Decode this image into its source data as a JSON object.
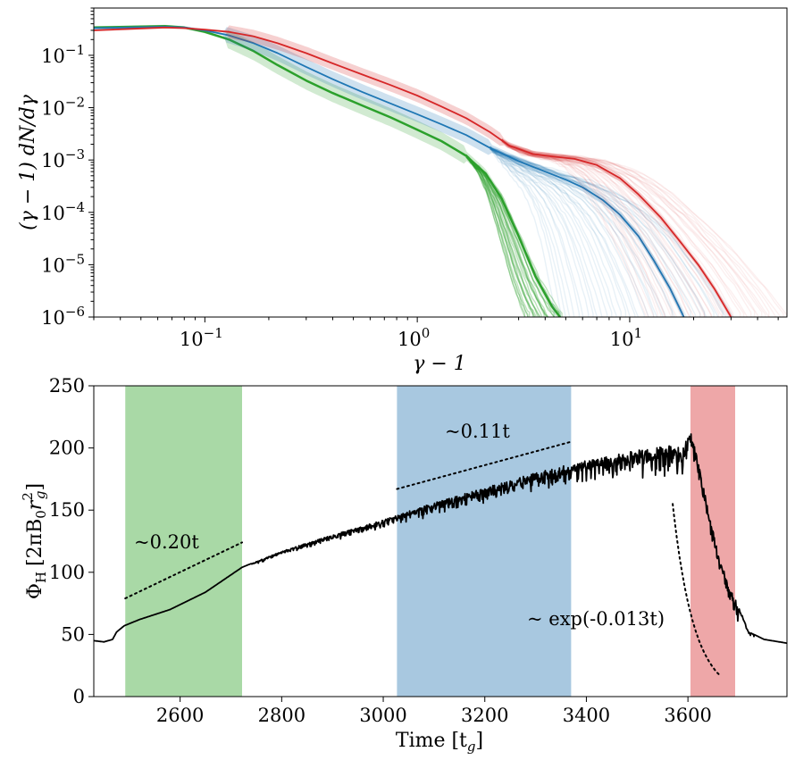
{
  "chart_data": [
    {
      "type": "line",
      "xscale": "log",
      "yscale": "log",
      "xlim": [
        0.03,
        55
      ],
      "ylim": [
        1e-06,
        0.8
      ],
      "xlabel": "γ − 1",
      "ylabel": "(γ − 1) dN/dγ",
      "xticks": [
        0.1,
        1,
        10
      ],
      "xtick_labels": [
        "10",
        "10",
        "10"
      ],
      "xtick_exps": [
        "−1",
        "0",
        "1"
      ],
      "yticks": [
        1e-06,
        1e-05,
        0.0001,
        0.001,
        0.01,
        0.1
      ],
      "ytick_labels": [
        "10",
        "10",
        "10",
        "10",
        "10",
        "10"
      ],
      "ytick_exps": [
        "−6",
        "−5",
        "−4",
        "−3",
        "−2",
        "−1"
      ],
      "series": [
        {
          "color": "#2ca02c",
          "x": [
            0.03,
            0.045,
            0.065,
            0.08,
            0.1,
            0.13,
            0.17,
            0.22,
            0.3,
            0.4,
            0.55,
            0.75,
            1.0,
            1.3,
            1.7,
            2.1,
            2.5,
            3.0,
            3.6,
            4.3,
            4.7
          ],
          "y": [
            0.34,
            0.35,
            0.36,
            0.34,
            0.28,
            0.2,
            0.12,
            0.065,
            0.033,
            0.019,
            0.011,
            0.0065,
            0.0038,
            0.0023,
            0.0012,
            0.00055,
            0.00018,
            3.5e-05,
            6e-06,
            1.6e-06,
            1e-06
          ],
          "band": 0.35,
          "fan": {
            "x_start": 1.7,
            "count": 24,
            "x_end_min": 3.2,
            "x_end_max": 4.8,
            "opacity": 0.3
          }
        },
        {
          "color": "#1f77b4",
          "x": [
            0.03,
            0.045,
            0.065,
            0.08,
            0.1,
            0.13,
            0.17,
            0.22,
            0.3,
            0.4,
            0.55,
            0.75,
            1.0,
            1.3,
            1.7,
            2.2,
            3.0,
            4.0,
            5.0,
            6.0,
            7.5,
            9.0,
            11.0,
            13.0,
            15.5,
            18.0
          ],
          "y": [
            0.33,
            0.34,
            0.35,
            0.34,
            0.3,
            0.24,
            0.17,
            0.11,
            0.06,
            0.035,
            0.02,
            0.012,
            0.0075,
            0.0048,
            0.003,
            0.0017,
            0.00095,
            0.0006,
            0.00042,
            0.0003,
            0.00017,
            9e-05,
            3.5e-05,
            1.2e-05,
            3.5e-06,
            1e-06
          ],
          "band": 0.3,
          "fan": {
            "x_start": 2.2,
            "count": 40,
            "x_end_min": 4.5,
            "x_end_max": 32,
            "opacity": 0.1
          }
        },
        {
          "color": "#d62728",
          "x": [
            0.03,
            0.045,
            0.065,
            0.08,
            0.1,
            0.13,
            0.17,
            0.22,
            0.3,
            0.4,
            0.55,
            0.75,
            1.0,
            1.3,
            1.7,
            2.2,
            2.7,
            3.5,
            4.5,
            5.5,
            7.0,
            9.0,
            11.0,
            14.0,
            17.0,
            21.0,
            25.0,
            30.0
          ],
          "y": [
            0.3,
            0.32,
            0.34,
            0.33,
            0.31,
            0.28,
            0.23,
            0.17,
            0.11,
            0.07,
            0.043,
            0.027,
            0.017,
            0.0105,
            0.0063,
            0.0034,
            0.0019,
            0.0013,
            0.00115,
            0.00105,
            0.0008,
            0.00045,
            0.00022,
            8e-05,
            3e-05,
            1e-05,
            3.5e-06,
            1e-06
          ],
          "band": 0.25,
          "fan": {
            "x_start": 2.5,
            "count": 40,
            "x_end_min": 12,
            "x_end_max": 55,
            "opacity": 0.07
          }
        }
      ]
    },
    {
      "type": "line",
      "xlim": [
        2430,
        3795
      ],
      "ylim": [
        0,
        250
      ],
      "xlabel": "Time [t",
      "xlabel_sub": "g",
      "xlabel_close": "]",
      "ylabel": "Φ",
      "ylabel_sub": "H",
      "ylabel_rest": "[2πB",
      "ylabel_sub2": "0",
      "ylabel_r": "r",
      "ylabel_sup": "2",
      "ylabel_sub3": "g",
      "ylabel_close": "]",
      "xticks": [
        2600,
        2800,
        3000,
        3200,
        3400,
        3600
      ],
      "xtick_labels": [
        "2600",
        "2800",
        "3000",
        "3200",
        "3400",
        "3600"
      ],
      "yticks": [
        0,
        50,
        100,
        150,
        200,
        250
      ],
      "ytick_labels": [
        "0",
        "50",
        "100",
        "150",
        "200",
        "250"
      ],
      "shaded_regions": [
        {
          "x0": 2492,
          "x1": 2722,
          "color": "#a9d9a6"
        },
        {
          "x0": 3027,
          "x1": 3370,
          "color": "#a8c8e0"
        },
        {
          "x0": 3605,
          "x1": 3693,
          "color": "#eea7a8"
        }
      ],
      "flux_anchors": {
        "t": [
          2430,
          2450,
          2467,
          2475,
          2490,
          2520,
          2580,
          2650,
          2722,
          2740,
          2800,
          2900,
          3000,
          3100,
          3200,
          3300,
          3400,
          3500,
          3560,
          3590,
          3605,
          3620,
          3640,
          3660,
          3680,
          3700,
          3720,
          3750,
          3795
        ],
        "value": [
          45,
          44,
          46,
          52,
          57,
          62,
          70,
          84,
          104,
          107,
          117,
          130,
          142,
          156,
          168,
          180,
          190,
          198,
          202,
          200,
          215,
          190,
          150,
          115,
          90,
          72,
          52,
          46,
          43
        ]
      },
      "fits": [
        {
          "label": "~0.20t",
          "t": [
            2492,
            2722
          ],
          "value": [
            79,
            124
          ]
        },
        {
          "label": "~0.11t",
          "t": [
            3027,
            3370
          ],
          "value": [
            167,
            205
          ]
        },
        {
          "label": "~ exp(-0.013t)",
          "t0": 3570,
          "t1": 3662,
          "v0": 155,
          "rate": 0.013
        }
      ]
    }
  ]
}
